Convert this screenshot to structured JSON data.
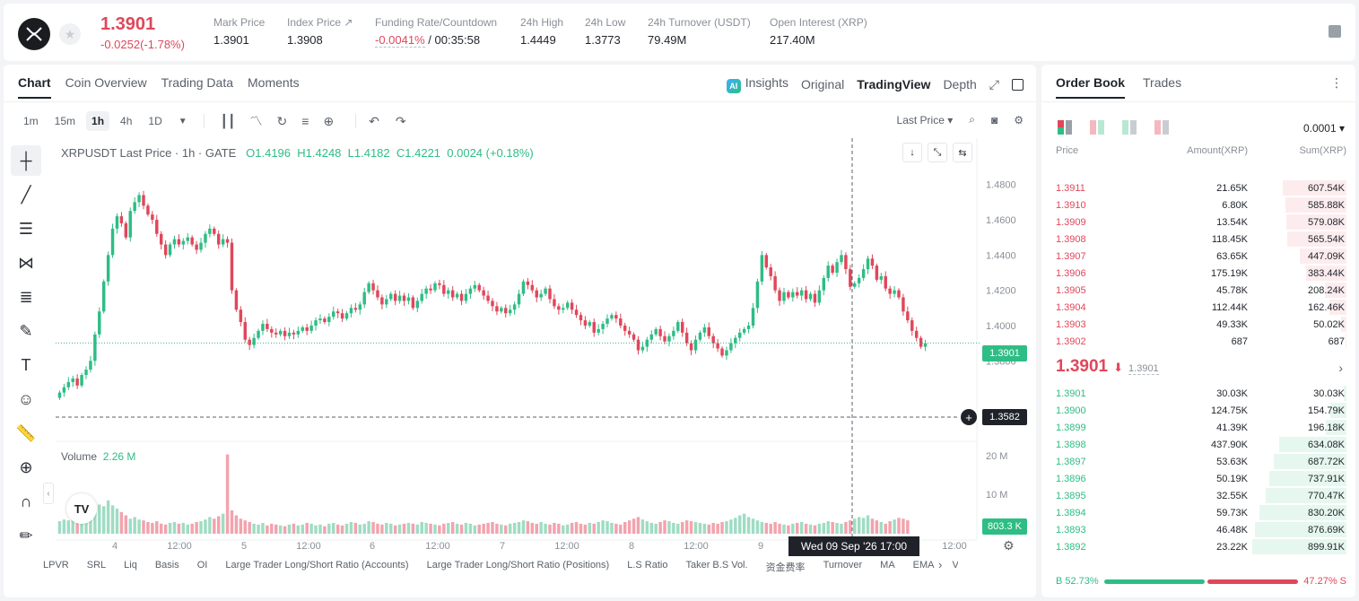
{
  "header": {
    "price": "1.3901",
    "change": "-0.0252(-1.78%)",
    "stats": [
      {
        "label": "Mark Price",
        "value": "1.3901"
      },
      {
        "label": "Index Price ↗",
        "value": "1.3908"
      },
      {
        "label": "Funding Rate/Countdown",
        "value": "-0.0041%",
        "value2": " / 00:35:58"
      },
      {
        "label": "24h High",
        "value": "1.4449"
      },
      {
        "label": "24h Low",
        "value": "1.3773"
      },
      {
        "label": "24h Turnover (USDT)",
        "value": "79.49M"
      },
      {
        "label": "Open Interest (XRP)",
        "value": "217.40M"
      }
    ]
  },
  "chart_tabs": [
    "Chart",
    "Coin Overview",
    "Trading Data",
    "Moments"
  ],
  "view_tabs": {
    "insights": "Insights",
    "original": "Original",
    "tradingview": "TradingView",
    "depth": "Depth"
  },
  "timeframes": [
    "1m",
    "15m",
    "1h",
    "4h",
    "1D"
  ],
  "price_type": "Last Price",
  "chart_title": {
    "symbol": "XRPUSDT Last Price · 1h · GATE",
    "o": "O1.4196",
    "h": "H1.4248",
    "l": "L1.4182",
    "c": "C1.4221",
    "chg": "0.0024 (+0.18%)"
  },
  "volume": {
    "label": "Volume",
    "value": "2.26 M",
    "current": "803.3 K"
  },
  "price_tags": {
    "last": "1.3901",
    "cross": "1.3582"
  },
  "crosshair": "Wed 09 Sep '26   17:00",
  "indicators": [
    "LPVR",
    "SRL",
    "Liq",
    "Basis",
    "OI",
    "Large Trader Long/Short Ratio (Accounts)",
    "Large Trader Long/Short Ratio (Positions)",
    "L.S Ratio",
    "Taker B.S Vol.",
    "资金费率",
    "Turnover",
    "MA",
    "EMA",
    "Volu"
  ],
  "colors": {
    "up": "#2ebd85",
    "down": "#e0475a"
  },
  "chart_data": {
    "type": "candlestick",
    "price_axis": [
      "1.4800",
      "1.4600",
      "1.4400",
      "1.4200",
      "1.4000",
      "1.3800"
    ],
    "volume_axis": [
      "20 M",
      "10 M"
    ],
    "time_axis": [
      "4",
      "12:00",
      "5",
      "12:00",
      "6",
      "12:00",
      "7",
      "12:00",
      "8",
      "12:00",
      "9",
      "12:00"
    ],
    "ylim": [
      1.372,
      1.488
    ],
    "closes": [
      1.362,
      1.365,
      1.368,
      1.37,
      1.366,
      1.372,
      1.375,
      1.38,
      1.395,
      1.408,
      1.425,
      1.44,
      1.455,
      1.462,
      1.458,
      1.45,
      1.465,
      1.47,
      1.474,
      1.468,
      1.463,
      1.46,
      1.452,
      1.446,
      1.44,
      1.446,
      1.449,
      1.446,
      1.448,
      1.45,
      1.446,
      1.443,
      1.447,
      1.452,
      1.455,
      1.452,
      1.446,
      1.449,
      1.447,
      1.42,
      1.409,
      1.402,
      1.392,
      1.389,
      1.393,
      1.397,
      1.401,
      1.398,
      1.396,
      1.395,
      1.397,
      1.394,
      1.396,
      1.395,
      1.397,
      1.399,
      1.397,
      1.4,
      1.403,
      1.404,
      1.402,
      1.405,
      1.408,
      1.407,
      1.404,
      1.407,
      1.41,
      1.409,
      1.412,
      1.419,
      1.424,
      1.42,
      1.416,
      1.412,
      1.415,
      1.418,
      1.414,
      1.417,
      1.414,
      1.416,
      1.41,
      1.414,
      1.418,
      1.421,
      1.42,
      1.424,
      1.423,
      1.418,
      1.42,
      1.416,
      1.418,
      1.414,
      1.418,
      1.421,
      1.423,
      1.42,
      1.417,
      1.414,
      1.411,
      1.408,
      1.41,
      1.407,
      1.409,
      1.412,
      1.418,
      1.425,
      1.423,
      1.42,
      1.416,
      1.418,
      1.421,
      1.415,
      1.411,
      1.409,
      1.41,
      1.413,
      1.409,
      1.406,
      1.403,
      1.4,
      1.402,
      1.396,
      1.398,
      1.401,
      1.404,
      1.406,
      1.404,
      1.4,
      1.397,
      1.395,
      1.392,
      1.386,
      1.388,
      1.392,
      1.395,
      1.398,
      1.394,
      1.391,
      1.394,
      1.397,
      1.402,
      1.396,
      1.39,
      1.386,
      1.392,
      1.396,
      1.399,
      1.394,
      1.39,
      1.387,
      1.383,
      1.386,
      1.39,
      1.393,
      1.396,
      1.398,
      1.4,
      1.41,
      1.425,
      1.44,
      1.433,
      1.428,
      1.42,
      1.414,
      1.419,
      1.416,
      1.419,
      1.417,
      1.42,
      1.415,
      1.418,
      1.413,
      1.42,
      1.427,
      1.434,
      1.43,
      1.436,
      1.44,
      1.432,
      1.422,
      1.424,
      1.427,
      1.432,
      1.438,
      1.434,
      1.426,
      1.428,
      1.421,
      1.418,
      1.42,
      1.416,
      1.408,
      1.403,
      1.397,
      1.393,
      1.388,
      1.39
    ],
    "volume_percent": [
      0.15,
      0.17,
      0.16,
      0.18,
      0.19,
      0.22,
      0.24,
      0.28,
      0.3,
      0.35,
      0.33,
      0.4,
      0.34,
      0.3,
      0.26,
      0.22,
      0.18,
      0.2,
      0.17,
      0.16,
      0.14,
      0.13,
      0.15,
      0.12,
      0.11,
      0.13,
      0.14,
      0.12,
      0.13,
      0.11,
      0.12,
      0.14,
      0.15,
      0.17,
      0.2,
      0.18,
      0.21,
      0.24,
      0.95,
      0.28,
      0.22,
      0.18,
      0.16,
      0.14,
      0.12,
      0.11,
      0.13,
      0.1,
      0.12,
      0.11,
      0.1,
      0.09,
      0.11,
      0.12,
      0.1,
      0.11,
      0.13,
      0.12,
      0.1,
      0.11,
      0.09,
      0.12,
      0.13,
      0.11,
      0.1,
      0.12,
      0.14,
      0.13,
      0.11,
      0.12,
      0.15,
      0.14,
      0.12,
      0.11,
      0.13,
      0.12,
      0.1,
      0.11,
      0.12,
      0.13,
      0.12,
      0.11,
      0.14,
      0.13,
      0.12,
      0.11,
      0.1,
      0.12,
      0.13,
      0.14,
      0.12,
      0.11,
      0.13,
      0.12,
      0.1,
      0.11,
      0.12,
      0.13,
      0.14,
      0.12,
      0.11,
      0.1,
      0.12,
      0.13,
      0.14,
      0.16,
      0.15,
      0.13,
      0.12,
      0.14,
      0.12,
      0.11,
      0.13,
      0.12,
      0.1,
      0.11,
      0.13,
      0.14,
      0.12,
      0.11,
      0.13,
      0.12,
      0.14,
      0.16,
      0.15,
      0.13,
      0.12,
      0.11,
      0.14,
      0.16,
      0.18,
      0.2,
      0.17,
      0.15,
      0.13,
      0.12,
      0.14,
      0.16,
      0.15,
      0.13,
      0.12,
      0.14,
      0.16,
      0.15,
      0.14,
      0.13,
      0.12,
      0.11,
      0.13,
      0.12,
      0.14,
      0.15,
      0.17,
      0.19,
      0.22,
      0.24,
      0.2,
      0.18,
      0.16,
      0.14,
      0.13,
      0.12,
      0.14,
      0.12,
      0.11,
      0.1,
      0.12,
      0.13,
      0.14,
      0.12,
      0.11,
      0.1,
      0.12,
      0.13,
      0.15,
      0.14,
      0.13,
      0.12,
      0.14,
      0.16,
      0.18,
      0.2,
      0.19,
      0.22,
      0.18,
      0.16,
      0.14,
      0.12,
      0.15,
      0.17,
      0.19,
      0.18,
      0.16
    ]
  },
  "orderbook": {
    "tabs": [
      "Order Book",
      "Trades"
    ],
    "tick": "0.0001 ▾",
    "headers": {
      "price": "Price",
      "amount": "Amount(XRP)",
      "sum": "Sum(XRP)"
    },
    "asks": [
      {
        "price": "1.3911",
        "amount": "21.65K",
        "sum": "607.54K",
        "depth": 0.68
      },
      {
        "price": "1.3910",
        "amount": "6.80K",
        "sum": "585.88K",
        "depth": 0.65
      },
      {
        "price": "1.3909",
        "amount": "13.54K",
        "sum": "579.08K",
        "depth": 0.64
      },
      {
        "price": "1.3908",
        "amount": "118.45K",
        "sum": "565.54K",
        "depth": 0.63
      },
      {
        "price": "1.3907",
        "amount": "63.65K",
        "sum": "447.09K",
        "depth": 0.5
      },
      {
        "price": "1.3906",
        "amount": "175.19K",
        "sum": "383.44K",
        "depth": 0.43
      },
      {
        "price": "1.3905",
        "amount": "45.78K",
        "sum": "208.24K",
        "depth": 0.23
      },
      {
        "price": "1.3904",
        "amount": "112.44K",
        "sum": "162.46K",
        "depth": 0.18
      },
      {
        "price": "1.3903",
        "amount": "49.33K",
        "sum": "50.02K",
        "depth": 0.06
      },
      {
        "price": "1.3902",
        "amount": "687",
        "sum": "687",
        "depth": 0.01
      }
    ],
    "mid_price": "1.3901",
    "mid_arrow": "⬇",
    "mid_mark": "1.3901",
    "bids": [
      {
        "price": "1.3901",
        "amount": "30.03K",
        "sum": "30.03K",
        "depth": 0.03
      },
      {
        "price": "1.3900",
        "amount": "124.75K",
        "sum": "154.79K",
        "depth": 0.17
      },
      {
        "price": "1.3899",
        "amount": "41.39K",
        "sum": "196.18K",
        "depth": 0.22
      },
      {
        "price": "1.3898",
        "amount": "437.90K",
        "sum": "634.08K",
        "depth": 0.71
      },
      {
        "price": "1.3897",
        "amount": "53.63K",
        "sum": "687.72K",
        "depth": 0.77
      },
      {
        "price": "1.3896",
        "amount": "50.19K",
        "sum": "737.91K",
        "depth": 0.82
      },
      {
        "price": "1.3895",
        "amount": "32.55K",
        "sum": "770.47K",
        "depth": 0.86
      },
      {
        "price": "1.3894",
        "amount": "59.73K",
        "sum": "830.20K",
        "depth": 0.92
      },
      {
        "price": "1.3893",
        "amount": "46.48K",
        "sum": "876.69K",
        "depth": 0.97
      },
      {
        "price": "1.3892",
        "amount": "23.22K",
        "sum": "899.91K",
        "depth": 1.0
      }
    ],
    "buy_ratio": "B 52.73%",
    "sell_ratio": "47.27% S",
    "buy_fraction": 0.5273
  }
}
